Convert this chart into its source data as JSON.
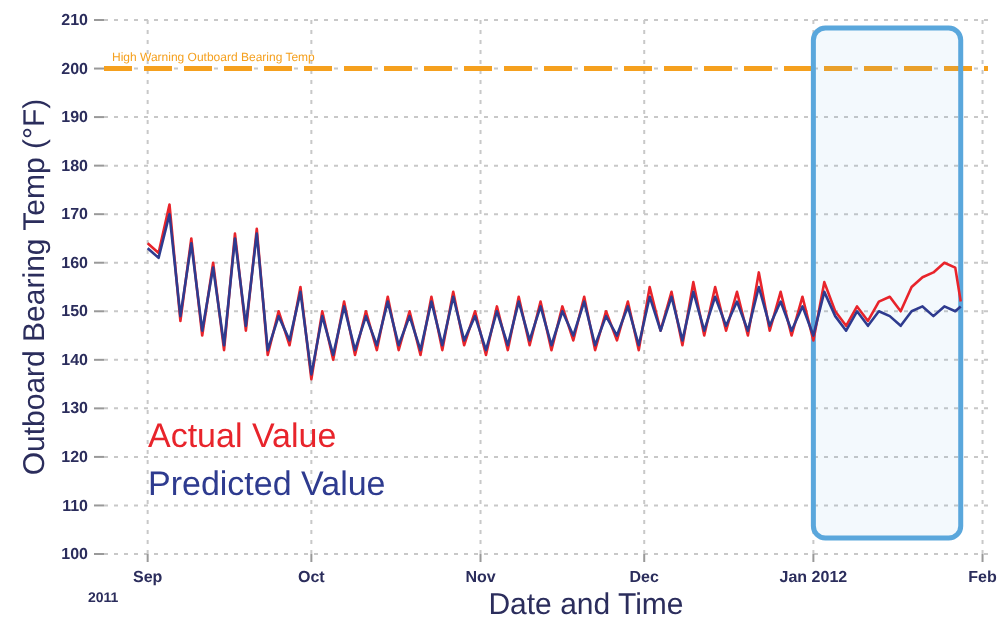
{
  "chart_data": {
    "type": "line",
    "xlabel": "Date and Time",
    "ylabel": "Outboard Bearing Temp (°F)",
    "x": [
      "2011-09-01",
      "2011-09-03",
      "2011-09-05",
      "2011-09-07",
      "2011-09-09",
      "2011-09-11",
      "2011-09-13",
      "2011-09-15",
      "2011-09-17",
      "2011-09-19",
      "2011-09-21",
      "2011-09-23",
      "2011-09-25",
      "2011-09-27",
      "2011-09-29",
      "2011-10-01",
      "2011-10-03",
      "2011-10-05",
      "2011-10-07",
      "2011-10-09",
      "2011-10-11",
      "2011-10-13",
      "2011-10-15",
      "2011-10-17",
      "2011-10-19",
      "2011-10-21",
      "2011-10-23",
      "2011-10-25",
      "2011-10-27",
      "2011-10-29",
      "2011-10-31",
      "2011-11-02",
      "2011-11-04",
      "2011-11-06",
      "2011-11-08",
      "2011-11-10",
      "2011-11-12",
      "2011-11-14",
      "2011-11-16",
      "2011-11-18",
      "2011-11-20",
      "2011-11-22",
      "2011-11-24",
      "2011-11-26",
      "2011-11-28",
      "2011-11-30",
      "2011-12-02",
      "2011-12-04",
      "2011-12-06",
      "2011-12-08",
      "2011-12-10",
      "2011-12-12",
      "2011-12-14",
      "2011-12-16",
      "2011-12-18",
      "2011-12-20",
      "2011-12-22",
      "2011-12-24",
      "2011-12-26",
      "2011-12-28",
      "2011-12-30",
      "2012-01-01",
      "2012-01-03",
      "2012-01-05",
      "2012-01-07",
      "2012-01-09",
      "2012-01-11",
      "2012-01-13",
      "2012-01-15",
      "2012-01-17",
      "2012-01-19",
      "2012-01-21",
      "2012-01-23",
      "2012-01-25",
      "2012-01-27",
      "2012-01-28"
    ],
    "series": [
      {
        "name": "Actual Value",
        "color": "#e8242b",
        "values": [
          164,
          162,
          172,
          148,
          165,
          145,
          160,
          142,
          166,
          146,
          167,
          141,
          150,
          143,
          155,
          136,
          150,
          140,
          152,
          141,
          150,
          142,
          153,
          142,
          150,
          141,
          153,
          142,
          154,
          143,
          150,
          141,
          151,
          142,
          153,
          143,
          152,
          142,
          151,
          144,
          153,
          142,
          150,
          144,
          152,
          142,
          155,
          146,
          154,
          143,
          156,
          145,
          155,
          146,
          154,
          145,
          158,
          146,
          154,
          145,
          153,
          144,
          156,
          150,
          147,
          151,
          148,
          152,
          153,
          150,
          155,
          157,
          158,
          160,
          159,
          152
        ]
      },
      {
        "name": "Predicted Value",
        "color": "#2e3b8f",
        "values": [
          163,
          161,
          170,
          149,
          164,
          146,
          159,
          143,
          165,
          147,
          166,
          142,
          149,
          144,
          154,
          137,
          149,
          141,
          151,
          142,
          149,
          143,
          152,
          143,
          149,
          142,
          152,
          143,
          153,
          144,
          149,
          142,
          150,
          143,
          152,
          144,
          151,
          143,
          150,
          145,
          152,
          143,
          149,
          145,
          151,
          143,
          153,
          146,
          153,
          144,
          154,
          146,
          153,
          147,
          152,
          146,
          155,
          147,
          152,
          146,
          151,
          145,
          154,
          149,
          146,
          150,
          147,
          150,
          149,
          147,
          150,
          151,
          149,
          151,
          150,
          151
        ]
      }
    ],
    "xlim": [
      "2011-08-24",
      "2012-02-02"
    ],
    "xticks": [
      {
        "value": "2011-09-01",
        "label": "Sep"
      },
      {
        "value": "2011-10-01",
        "label": "Oct"
      },
      {
        "value": "2011-11-01",
        "label": "Nov"
      },
      {
        "value": "2011-12-01",
        "label": "Dec"
      },
      {
        "value": "2012-01-01",
        "label": "Jan 2012"
      },
      {
        "value": "2012-02-01",
        "label": "Feb"
      }
    ],
    "ylim": [
      100,
      210
    ],
    "yticks": [
      100,
      110,
      120,
      130,
      140,
      150,
      160,
      170,
      180,
      190,
      200,
      210
    ],
    "grid": true,
    "legend": "left",
    "marker": "none",
    "line_style": "solid",
    "ref_lines": [
      {
        "axis": "y",
        "value": 200,
        "label": "High Warning Outboard Bearing Temp",
        "color": "#f5a01e",
        "line_style": "dashed"
      }
    ],
    "bands": [
      {
        "axis": "x",
        "from": "2012-01-01",
        "to": "2012-01-28",
        "color": "#5aa7dc"
      }
    ],
    "annotations": [
      "2011"
    ]
  }
}
